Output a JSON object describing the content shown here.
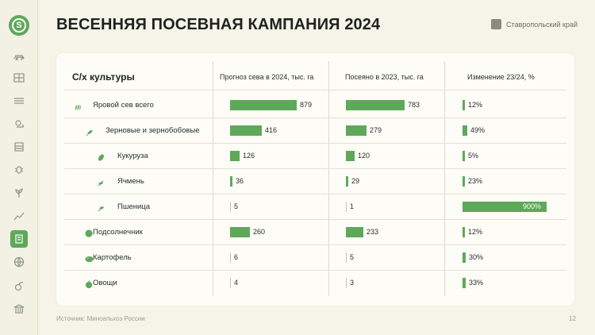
{
  "logo": {
    "letter": "S"
  },
  "sidebar": {
    "items": [
      {
        "icon": "cattle-icon"
      },
      {
        "icon": "grid-icon"
      },
      {
        "icon": "field-icon"
      },
      {
        "icon": "weather-icon"
      },
      {
        "icon": "storage-icon"
      },
      {
        "icon": "bug-icon"
      },
      {
        "icon": "plant-icon"
      },
      {
        "icon": "chart-icon"
      },
      {
        "icon": "sowing-icon",
        "active": true
      },
      {
        "icon": "globe-icon"
      },
      {
        "icon": "fruit-icon"
      },
      {
        "icon": "bank-icon"
      }
    ]
  },
  "header": {
    "title": "ВЕСЕННЯЯ ПОСЕВНАЯ КАМПАНИЯ 2024",
    "region": "Ставропольский край"
  },
  "table": {
    "col_crop": "С/х культуры",
    "col_forecast": "Прогноз сева в 2024, тыс. га",
    "col_sown": "Посеяно в 2023, тыс. га",
    "col_change": "Изменение 23/24, %",
    "rows": [
      {
        "label": "Яровой сев всего",
        "icon": "wheat-sprout-icon",
        "forecast": 879,
        "sown": 783,
        "change": 12,
        "change_label": "12%"
      },
      {
        "label": "Зерновые и зернобобовые",
        "icon": "grain-icon",
        "forecast": 416,
        "sown": 279,
        "change": 49,
        "change_label": "49%"
      },
      {
        "label": "Кукуруза",
        "icon": "corn-icon",
        "forecast": 126,
        "sown": 120,
        "change": 5,
        "change_label": "5%"
      },
      {
        "label": "Ячмень",
        "icon": "barley-icon",
        "forecast": 36,
        "sown": 29,
        "change": 23,
        "change_label": "23%"
      },
      {
        "label": "Пшеница",
        "icon": "wheat-icon",
        "forecast": 5,
        "sown": 1,
        "change": 900,
        "change_label": "900%"
      },
      {
        "label": "Подсолнечник",
        "icon": "sunflower-icon",
        "forecast": 260,
        "sown": 233,
        "change": 12,
        "change_label": "12%"
      },
      {
        "label": "Картофель",
        "icon": "potato-icon",
        "forecast": 6,
        "sown": 5,
        "change": 30,
        "change_label": "30%"
      },
      {
        "label": "Овощи",
        "icon": "vegetable-icon",
        "forecast": 4,
        "sown": 3,
        "change": 33,
        "change_label": "33%"
      }
    ]
  },
  "footer": {
    "source": "Источник: Минсельхоз России",
    "page": "12"
  },
  "colors": {
    "accent": "#5ea85a",
    "background": "#f6f3e9",
    "card": "#fdfcf7"
  }
}
